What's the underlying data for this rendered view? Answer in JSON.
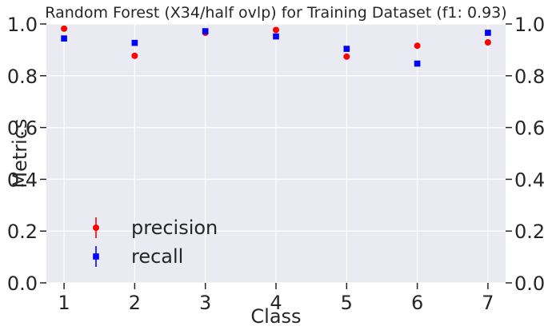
{
  "chart_data": {
    "type": "scatter",
    "title": "Random Forest (X34/half ovlp) for Training Dataset (f1: 0.93)",
    "xlabel": "Class",
    "ylabel": "Metrics",
    "x": [
      1,
      2,
      3,
      4,
      5,
      6,
      7
    ],
    "xlim": [
      0.75,
      7.25
    ],
    "ylim": [
      0.0,
      1.0
    ],
    "xticks": [
      "1",
      "2",
      "3",
      "4",
      "5",
      "6",
      "7"
    ],
    "yticks": [
      "0.0",
      "0.2",
      "0.4",
      "0.6",
      "0.8",
      "1.0"
    ],
    "grid": true,
    "right_axis_ticks": true,
    "legend_position": "lower-left",
    "series": [
      {
        "name": "precision",
        "marker": "circle",
        "color": "#ff0000",
        "values": [
          0.982,
          0.877,
          0.966,
          0.977,
          0.874,
          0.916,
          0.929
        ]
      },
      {
        "name": "recall",
        "marker": "square",
        "color": "#0000ff",
        "values": [
          0.944,
          0.927,
          0.972,
          0.952,
          0.904,
          0.847,
          0.966
        ]
      }
    ]
  },
  "colors": {
    "plot_background": "#eaeaf2",
    "grid": "#ffffff",
    "text": "#262626"
  }
}
